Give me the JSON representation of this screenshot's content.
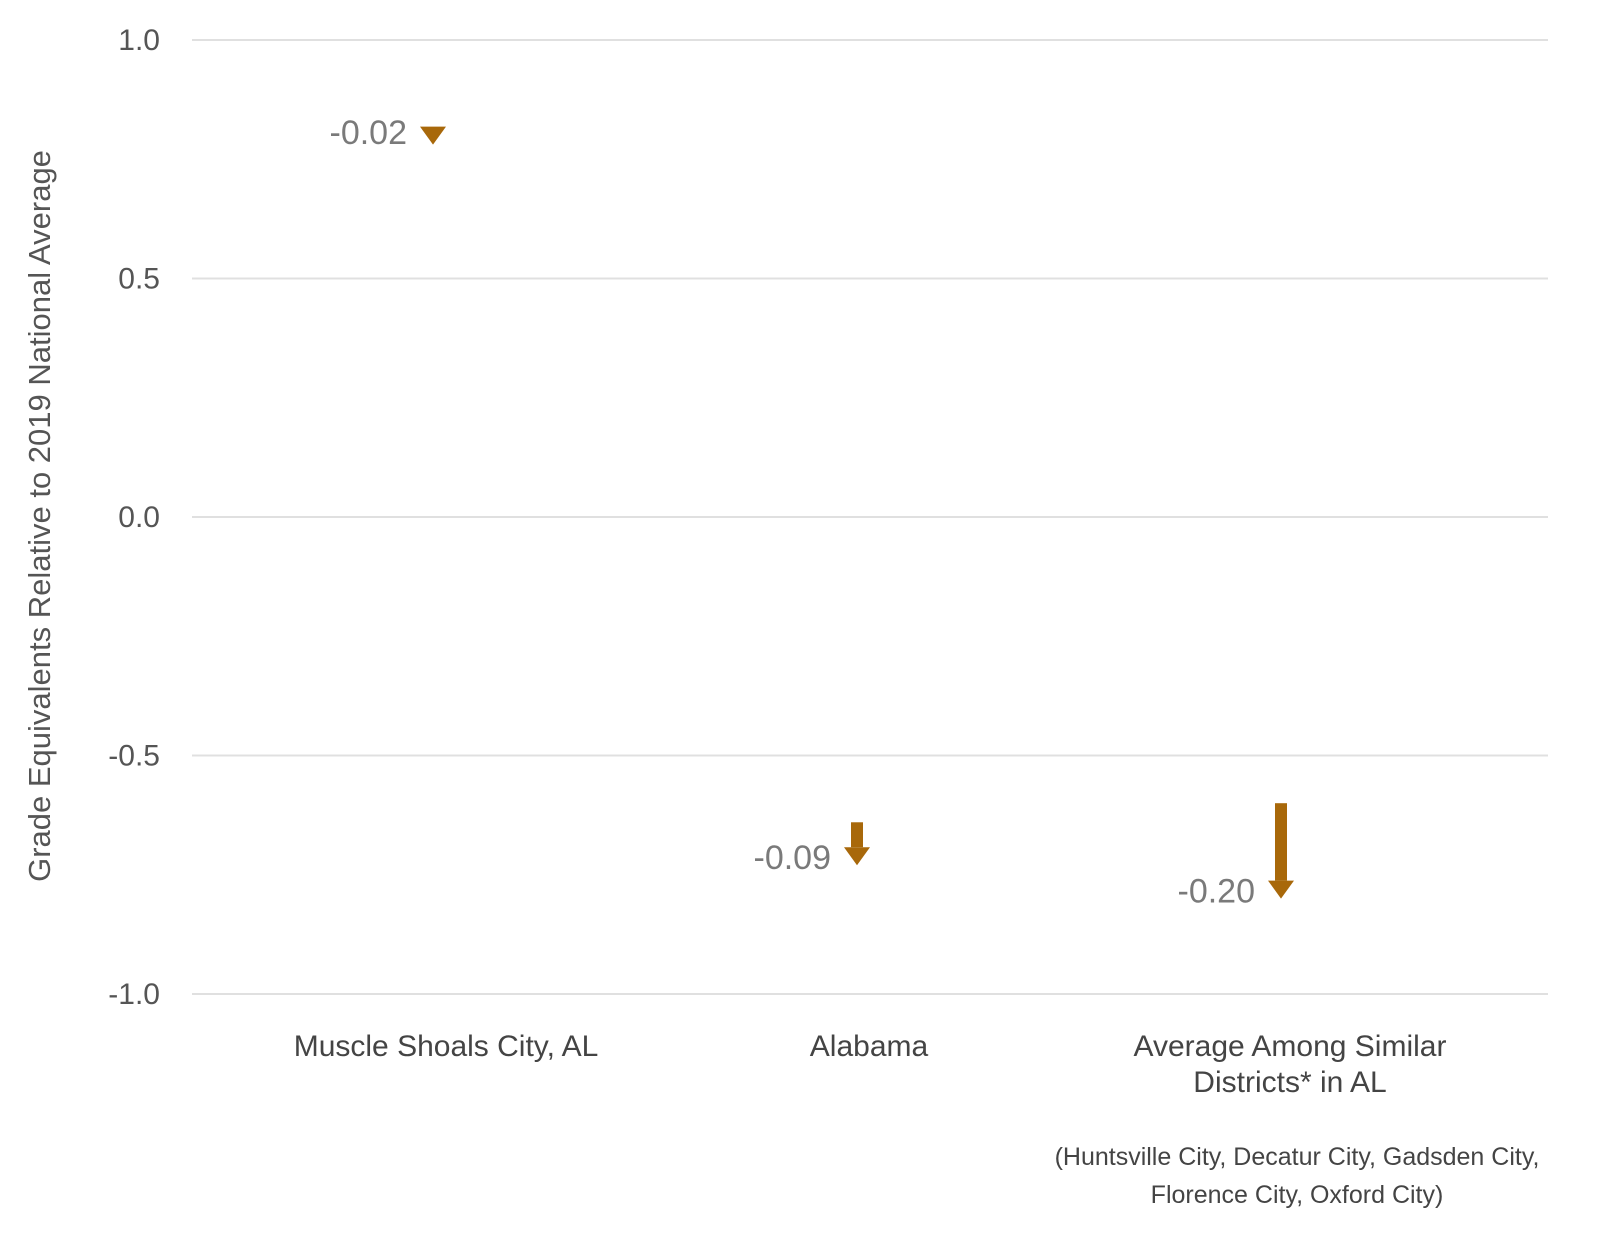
{
  "chart_data": {
    "type": "arrow",
    "ylabel": "Grade Equivalents Relative to 2019 National Average",
    "ylim": [
      -1.0,
      1.0
    ],
    "yticks": [
      1.0,
      0.5,
      0.0,
      -0.5,
      -1.0
    ],
    "ytick_labels": [
      "1.0",
      "0.5",
      "0.0",
      "-0.5",
      "-1.0"
    ],
    "grid": true,
    "categories": [
      [
        "Muscle Shoals City, AL"
      ],
      [
        "Alabama"
      ],
      [
        "Average Among Similar",
        "Districts* in AL"
      ]
    ],
    "footnote": [
      "(Huntsville City, Decatur City, Gadsden City,",
      "Florence City, Oxford City)"
    ],
    "series": [
      {
        "from": [
          0.81,
          -0.64,
          -0.6
        ],
        "to": [
          0.79,
          -0.73,
          -0.8
        ],
        "labels": [
          "-0.02",
          "-0.09",
          "-0.20"
        ]
      }
    ],
    "colors": {
      "arrow": "#a8680a",
      "grid": "#e0e0e0"
    }
  }
}
